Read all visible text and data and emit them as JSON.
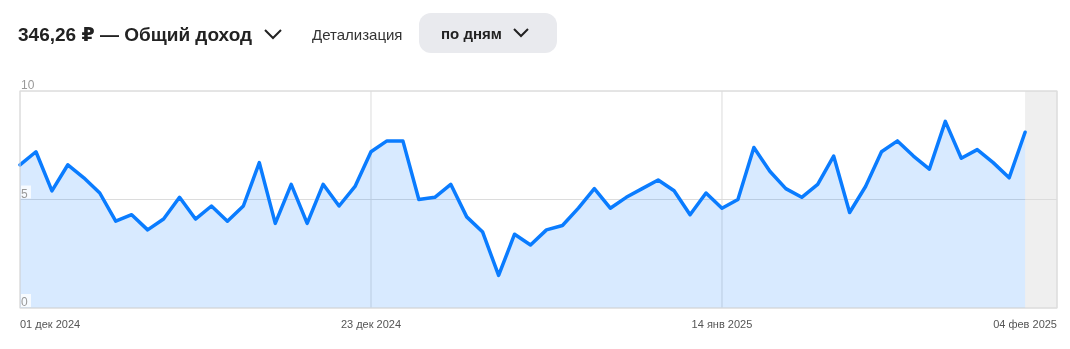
{
  "chart_data": {
    "type": "area",
    "title": "346,26 ₽ — Общий доход",
    "annotations": [
      "Детализация",
      "по дням"
    ],
    "x": [
      "2024-12-01",
      "2024-12-02",
      "2024-12-03",
      "2024-12-04",
      "2024-12-05",
      "2024-12-06",
      "2024-12-07",
      "2024-12-08",
      "2024-12-09",
      "2024-12-10",
      "2024-12-11",
      "2024-12-12",
      "2024-12-13",
      "2024-12-14",
      "2024-12-15",
      "2024-12-16",
      "2024-12-17",
      "2024-12-18",
      "2024-12-19",
      "2024-12-20",
      "2024-12-21",
      "2024-12-22",
      "2024-12-23",
      "2024-12-24",
      "2024-12-25",
      "2024-12-26",
      "2024-12-27",
      "2024-12-28",
      "2024-12-29",
      "2024-12-30",
      "2024-12-31",
      "2025-01-01",
      "2025-01-02",
      "2025-01-03",
      "2025-01-04",
      "2025-01-05",
      "2025-01-06",
      "2025-01-07",
      "2025-01-08",
      "2025-01-09",
      "2025-01-10",
      "2025-01-11",
      "2025-01-12",
      "2025-01-13",
      "2025-01-14",
      "2025-01-15",
      "2025-01-16",
      "2025-01-17",
      "2025-01-18",
      "2025-01-19",
      "2025-01-20",
      "2025-01-21",
      "2025-01-22",
      "2025-01-23",
      "2025-01-24",
      "2025-01-25",
      "2025-01-26",
      "2025-01-27",
      "2025-01-28",
      "2025-01-29",
      "2025-01-30",
      "2025-01-31",
      "2025-02-01",
      "2025-02-02"
    ],
    "series": [
      {
        "color": "#0a7cff",
        "values": [
          6.6,
          7.2,
          5.4,
          6.6,
          6.0,
          5.3,
          4.0,
          4.3,
          3.6,
          4.1,
          5.1,
          4.1,
          4.7,
          4.0,
          4.7,
          6.7,
          3.9,
          5.7,
          3.9,
          5.7,
          4.7,
          5.6,
          7.2,
          7.7,
          7.7,
          5.0,
          5.1,
          5.7,
          4.2,
          3.5,
          1.5,
          3.4,
          2.9,
          3.6,
          3.8,
          4.6,
          5.5,
          4.6,
          5.1,
          5.5,
          5.9,
          5.4,
          4.3,
          5.3,
          4.6,
          5.0,
          7.4,
          6.3,
          5.5,
          5.1,
          5.7,
          7.0,
          4.4,
          5.6,
          7.2,
          7.7,
          7.0,
          6.4,
          8.6,
          6.9,
          7.3,
          6.7,
          6.0,
          8.1
        ]
      }
    ],
    "xlim": [
      "2024-12-01",
      "2025-02-04"
    ],
    "xticks": [
      {
        "value": "2024-12-01",
        "label": "01 дек 2024"
      },
      {
        "value": "2024-12-23",
        "label": "23 дек 2024"
      },
      {
        "value": "2025-01-14",
        "label": "14 янв 2025"
      },
      {
        "value": "2025-02-04",
        "label": "04 фев 2025"
      }
    ],
    "ylim": [
      0,
      10
    ],
    "yticks": [
      0,
      5,
      10
    ],
    "grid": true,
    "bands": [
      {
        "axis": "x",
        "from": "2025-02-02",
        "to": "2025-02-04",
        "color": "#efefef"
      }
    ]
  }
}
